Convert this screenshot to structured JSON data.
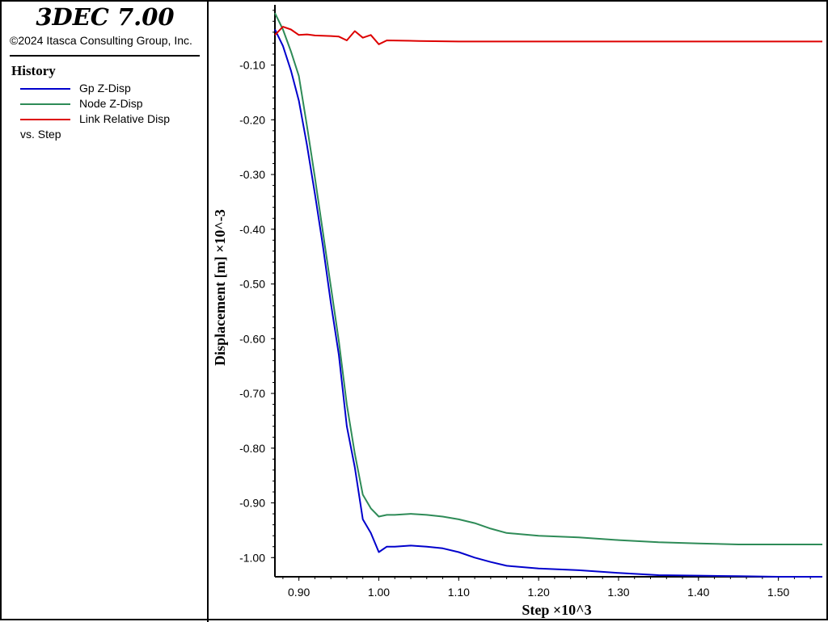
{
  "app": {
    "title": "3DEC 7.00",
    "copyright": "©2024 Itasca Consulting Group, Inc."
  },
  "legend": {
    "heading": "History",
    "items": [
      {
        "label": "Gp Z-Disp",
        "color": "#0000cc"
      },
      {
        "label": "Node Z-Disp",
        "color": "#2e8b57"
      },
      {
        "label": "Link Relative Disp",
        "color": "#dd0000"
      }
    ],
    "vs_label": "vs. Step"
  },
  "chart_data": {
    "type": "line",
    "xlabel": "Step ×10^3",
    "ylabel": "Displacement [m] ×10^-3",
    "xlim": [
      0.87,
      1.555
    ],
    "ylim": [
      -1.035,
      0.01
    ],
    "x_ticks": [
      0.9,
      1.0,
      1.1,
      1.2,
      1.3,
      1.4,
      1.5
    ],
    "x_tick_labels": [
      "0.90",
      "1.00",
      "1.10",
      "1.20",
      "1.30",
      "1.40",
      "1.50"
    ],
    "y_ticks": [
      -0.1,
      -0.2,
      -0.3,
      -0.4,
      -0.5,
      -0.6,
      -0.7,
      -0.8,
      -0.9,
      -1.0
    ],
    "y_tick_labels": [
      "-0.10",
      "-0.20",
      "-0.30",
      "-0.40",
      "-0.50",
      "-0.60",
      "-0.70",
      "-0.80",
      "-0.90",
      "-1.00"
    ],
    "grid": false,
    "series": [
      {
        "name": "Gp Z-Disp",
        "color": "#0000cc",
        "points": [
          [
            0.87,
            -0.035
          ],
          [
            0.88,
            -0.065
          ],
          [
            0.89,
            -0.11
          ],
          [
            0.9,
            -0.165
          ],
          [
            0.91,
            -0.245
          ],
          [
            0.92,
            -0.335
          ],
          [
            0.93,
            -0.43
          ],
          [
            0.94,
            -0.535
          ],
          [
            0.95,
            -0.63
          ],
          [
            0.96,
            -0.76
          ],
          [
            0.97,
            -0.835
          ],
          [
            0.98,
            -0.93
          ],
          [
            0.99,
            -0.955
          ],
          [
            1.0,
            -0.99
          ],
          [
            1.01,
            -0.98
          ],
          [
            1.02,
            -0.98
          ],
          [
            1.04,
            -0.978
          ],
          [
            1.06,
            -0.98
          ],
          [
            1.08,
            -0.983
          ],
          [
            1.1,
            -0.99
          ],
          [
            1.12,
            -1.0
          ],
          [
            1.14,
            -1.008
          ],
          [
            1.16,
            -1.015
          ],
          [
            1.2,
            -1.02
          ],
          [
            1.25,
            -1.023
          ],
          [
            1.3,
            -1.028
          ],
          [
            1.35,
            -1.032
          ],
          [
            1.4,
            -1.033
          ],
          [
            1.45,
            -1.034
          ],
          [
            1.5,
            -1.035
          ],
          [
            1.555,
            -1.035
          ]
        ]
      },
      {
        "name": "Node Z-Disp",
        "color": "#2e8b57",
        "points": [
          [
            0.87,
            -0.005
          ],
          [
            0.88,
            -0.035
          ],
          [
            0.89,
            -0.075
          ],
          [
            0.9,
            -0.12
          ],
          [
            0.91,
            -0.21
          ],
          [
            0.92,
            -0.305
          ],
          [
            0.93,
            -0.405
          ],
          [
            0.94,
            -0.505
          ],
          [
            0.95,
            -0.605
          ],
          [
            0.96,
            -0.72
          ],
          [
            0.97,
            -0.81
          ],
          [
            0.98,
            -0.885
          ],
          [
            0.99,
            -0.91
          ],
          [
            1.0,
            -0.925
          ],
          [
            1.01,
            -0.922
          ],
          [
            1.02,
            -0.922
          ],
          [
            1.04,
            -0.92
          ],
          [
            1.06,
            -0.922
          ],
          [
            1.08,
            -0.925
          ],
          [
            1.1,
            -0.93
          ],
          [
            1.12,
            -0.937
          ],
          [
            1.14,
            -0.947
          ],
          [
            1.16,
            -0.955
          ],
          [
            1.2,
            -0.96
          ],
          [
            1.25,
            -0.963
          ],
          [
            1.3,
            -0.968
          ],
          [
            1.35,
            -0.972
          ],
          [
            1.4,
            -0.974
          ],
          [
            1.45,
            -0.976
          ],
          [
            1.5,
            -0.976
          ],
          [
            1.555,
            -0.976
          ]
        ]
      },
      {
        "name": "Link Relative Disp",
        "color": "#dd0000",
        "points": [
          [
            0.87,
            -0.045
          ],
          [
            0.88,
            -0.03
          ],
          [
            0.89,
            -0.035
          ],
          [
            0.9,
            -0.045
          ],
          [
            0.91,
            -0.044
          ],
          [
            0.92,
            -0.046
          ],
          [
            0.94,
            -0.047
          ],
          [
            0.95,
            -0.048
          ],
          [
            0.96,
            -0.055
          ],
          [
            0.97,
            -0.038
          ],
          [
            0.98,
            -0.05
          ],
          [
            0.99,
            -0.045
          ],
          [
            1.0,
            -0.062
          ],
          [
            1.01,
            -0.055
          ],
          [
            1.05,
            -0.056
          ],
          [
            1.1,
            -0.057
          ],
          [
            1.2,
            -0.057
          ],
          [
            1.3,
            -0.057
          ],
          [
            1.4,
            -0.057
          ],
          [
            1.5,
            -0.057
          ],
          [
            1.555,
            -0.057
          ]
        ]
      }
    ]
  }
}
